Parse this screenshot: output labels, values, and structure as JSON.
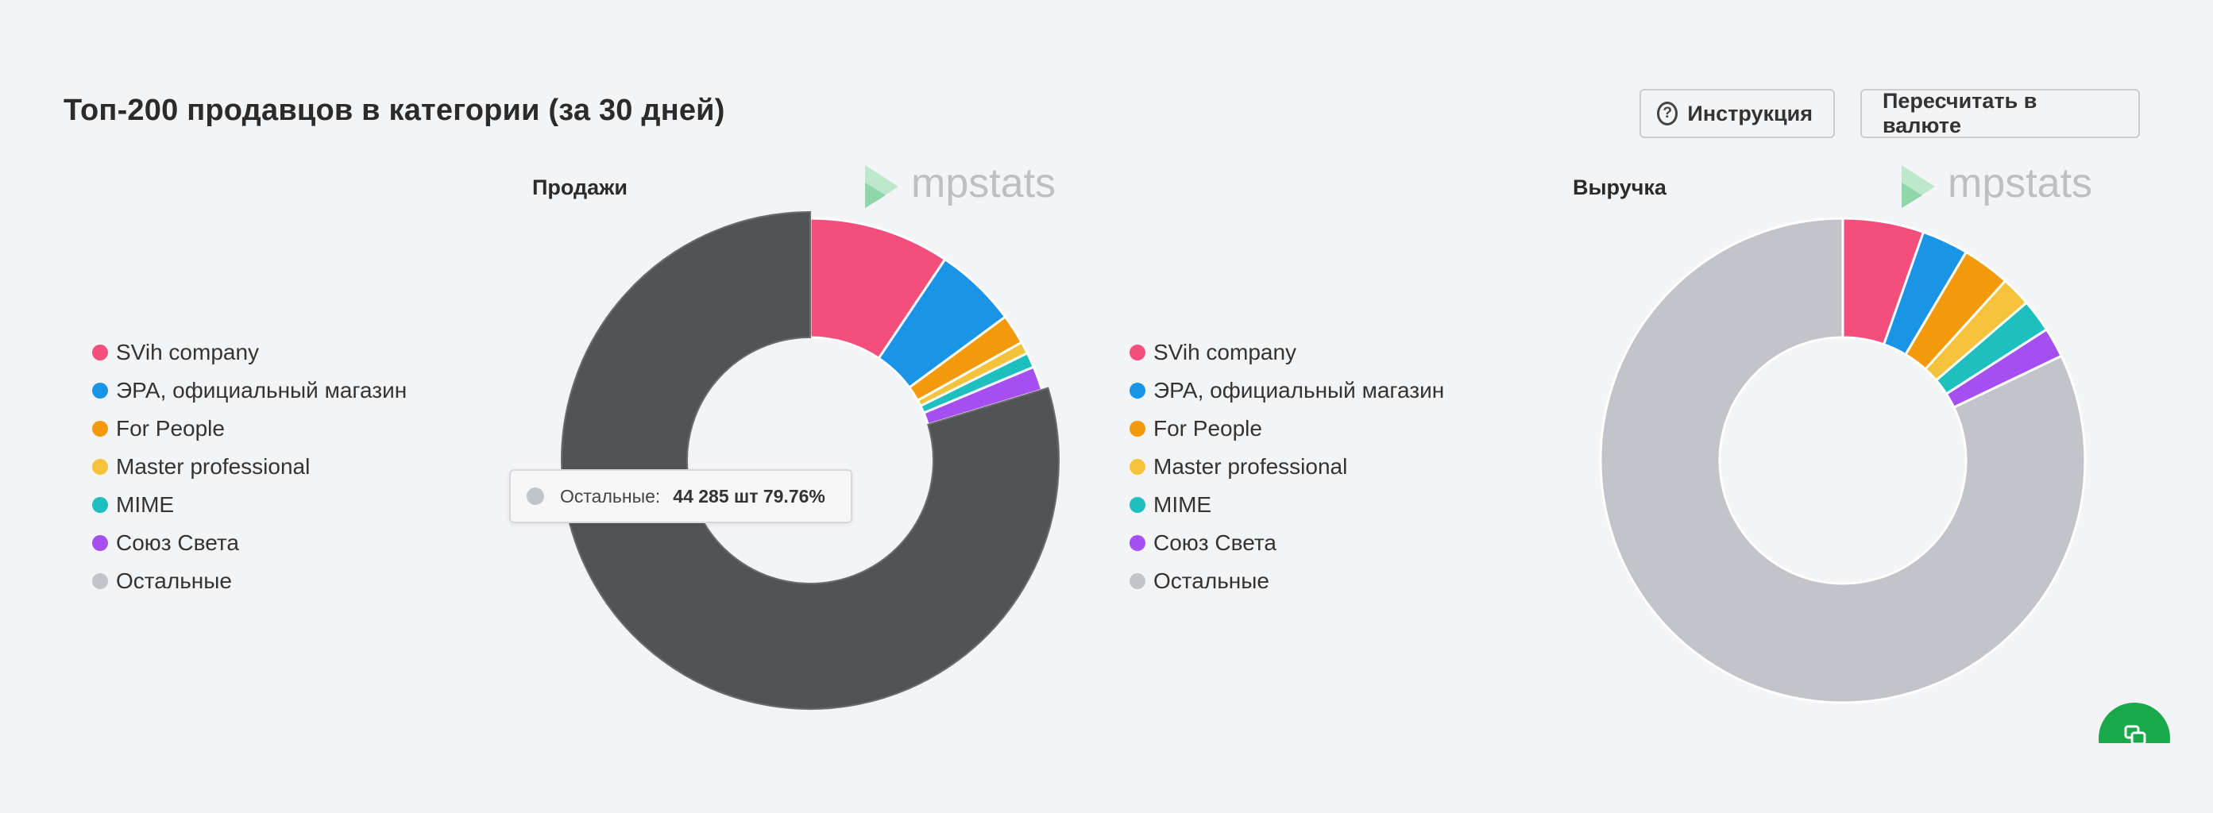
{
  "header": {
    "title": "Топ-200 продавцов в категории (за 30 дней)",
    "help_label": "Инструкция",
    "currency_label": "Пересчитать в валюте"
  },
  "watermark": {
    "text": "mpstats"
  },
  "colors": {
    "SVih company": "#f44e7d",
    "ЭРА, официальный магазин": "#1a94e6",
    "For People": "#f39a0c",
    "Master professional": "#f5c33b",
    "MIME": "#1dbfbf",
    "Союз Света": "#a64ff0",
    "Остальные_sales": "#525355",
    "Остальные_revenue": "#c2c4c9",
    "Остальные_dot": "#c2c4c9"
  },
  "chart_data": [
    {
      "type": "pie",
      "variant": "donut",
      "title": "Продажи",
      "labels": [
        "SVih company",
        "ЭРА, официальный магазин",
        "For People",
        "Master professional",
        "MIME",
        "Союз Света",
        "Остальные"
      ],
      "values": [
        9.4,
        5.5,
        2.0,
        0.8,
        1.0,
        1.6,
        79.76
      ],
      "highlighted": "Остальные",
      "legend_position": "left",
      "tooltip": {
        "label": "Остальные:",
        "value": "44 285 шт 79.76%"
      }
    },
    {
      "type": "pie",
      "variant": "donut",
      "title": "Выручка",
      "labels": [
        "SVih company",
        "ЭРА, официальный магазин",
        "For People",
        "Master professional",
        "MIME",
        "Союз Света",
        "Остальные"
      ],
      "values": [
        5.4,
        3.1,
        3.2,
        2.0,
        2.2,
        2.0,
        82.1
      ],
      "legend_position": "left"
    }
  ]
}
